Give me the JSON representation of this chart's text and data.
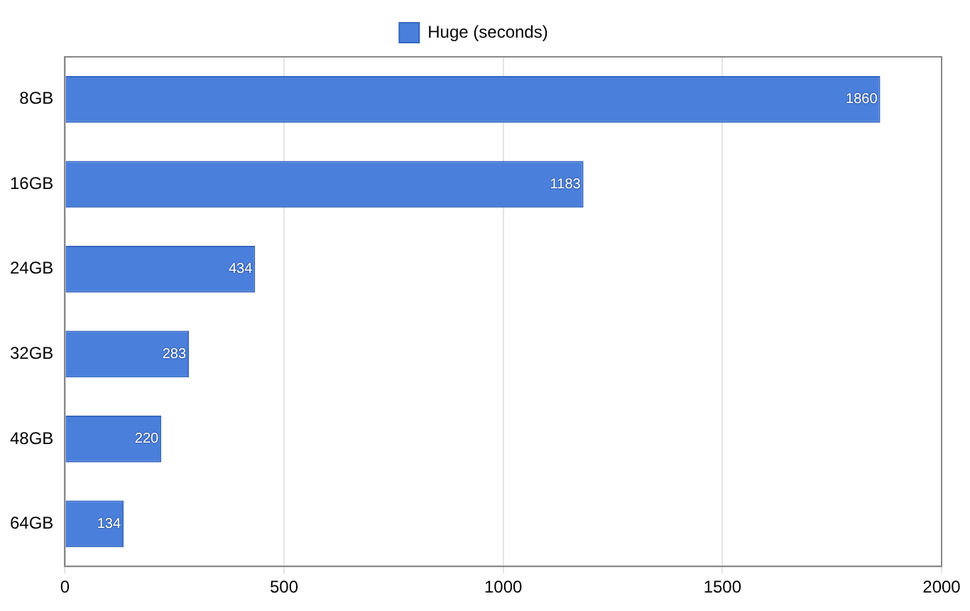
{
  "chart_data": {
    "type": "bar",
    "orientation": "horizontal",
    "categories": [
      "8GB",
      "16GB",
      "24GB",
      "32GB",
      "48GB",
      "64GB"
    ],
    "series": [
      {
        "name": "Huge (seconds)",
        "color": "#4a7fdc",
        "values": [
          1860,
          1183,
          434,
          283,
          220,
          134
        ]
      }
    ],
    "xlim": [
      0,
      2000
    ],
    "xticks": [
      0,
      500,
      1000,
      1500,
      2000
    ],
    "grid": "x",
    "legend": "top",
    "data_labels": true
  }
}
